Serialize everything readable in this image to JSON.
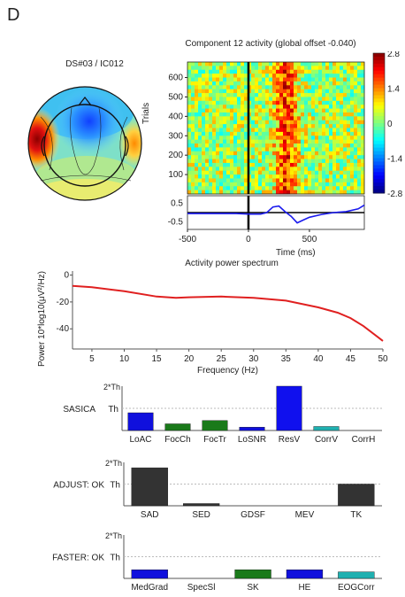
{
  "figure": {
    "panel_letter": "D"
  },
  "topomap": {
    "title": "DS#03 / IC012"
  },
  "erpimage": {
    "title": "Component 12 activity (global offset -0.040)",
    "ylabel": "Trials",
    "xlabel": "Time (ms)"
  },
  "chart_data": [
    {
      "type": "heatmap",
      "name": "erp-image",
      "y_ticks": [
        100,
        200,
        300,
        400,
        500,
        600
      ],
      "ylim": [
        0,
        680
      ],
      "x_ticks": [
        -500,
        0,
        500
      ],
      "xlim": [
        -500,
        950
      ],
      "colorbar": {
        "ticks": [
          "2.8",
          "1.4",
          "0",
          "-1.4",
          "-2.8"
        ],
        "range": [
          -2.8,
          2.8
        ]
      }
    },
    {
      "type": "line",
      "name": "erp-trace",
      "y_ticks": [
        "0.5",
        "-0.5"
      ],
      "ylim": [
        -0.9,
        0.9
      ],
      "x": [
        -500,
        -300,
        -100,
        0,
        100,
        150,
        200,
        250,
        300,
        350,
        400,
        450,
        500,
        600,
        700,
        800,
        900,
        950
      ],
      "y": [
        -0.05,
        -0.05,
        -0.05,
        -0.08,
        -0.08,
        0.0,
        0.3,
        0.35,
        0.05,
        -0.2,
        -0.55,
        -0.4,
        -0.25,
        -0.1,
        0.0,
        0.05,
        0.2,
        0.4
      ]
    },
    {
      "type": "line",
      "name": "power-spectrum",
      "title": "Activity power spectrum",
      "xlabel": "Frequency (Hz)",
      "ylabel": "Power 10*log10(μV²/Hz)",
      "x_ticks": [
        5,
        10,
        15,
        20,
        25,
        30,
        35,
        40,
        45,
        50
      ],
      "y_ticks": [
        0,
        -20,
        -40
      ],
      "xlim": [
        2,
        50
      ],
      "ylim": [
        -55,
        3
      ],
      "x": [
        2,
        5,
        10,
        15,
        18,
        20,
        25,
        30,
        35,
        40,
        43,
        45,
        47,
        50
      ],
      "y": [
        -8,
        -9,
        -12,
        -16,
        -17,
        -16.5,
        -16,
        -17,
        -19,
        -24,
        -28,
        -32,
        -38,
        -49
      ],
      "color": "#e02020"
    },
    {
      "type": "bar",
      "name": "sasica",
      "label": "SASICA",
      "categories": [
        "LoAC",
        "FocCh",
        "FocTr",
        "LoSNR",
        "ResV",
        "CorrV",
        "CorrH"
      ],
      "values": [
        0.8,
        0.3,
        0.45,
        0.15,
        2.0,
        0.18,
        0.0
      ],
      "colors": [
        "#1010dd",
        "#1a7a1a",
        "#1a7a1a",
        "#1010dd",
        "#1010ee",
        "#20b0b0",
        "#20b0b0"
      ],
      "ymax_label": "2*Th",
      "th_label": "Th"
    },
    {
      "type": "bar",
      "name": "adjust",
      "label": "ADJUST: OK",
      "categories": [
        "SAD",
        "SED",
        "GDSF",
        "MEV",
        "TK"
      ],
      "values": [
        1.75,
        0.1,
        0.0,
        0.0,
        1.0
      ],
      "colors": [
        "#333333",
        "#333333",
        "#333333",
        "#333333",
        "#333333"
      ],
      "ymax_label": "2*Th",
      "th_label": "Th"
    },
    {
      "type": "bar",
      "name": "faster",
      "label": "FASTER: OK",
      "categories": [
        "MedGrad",
        "SpecSl",
        "SK",
        "HE",
        "EOGCorr"
      ],
      "values": [
        0.4,
        0.0,
        0.4,
        0.4,
        0.3
      ],
      "colors": [
        "#1010dd",
        "#1010dd",
        "#1a7a1a",
        "#1010dd",
        "#20b0b0"
      ],
      "ymax_label": "2*Th",
      "th_label": "Th"
    }
  ]
}
